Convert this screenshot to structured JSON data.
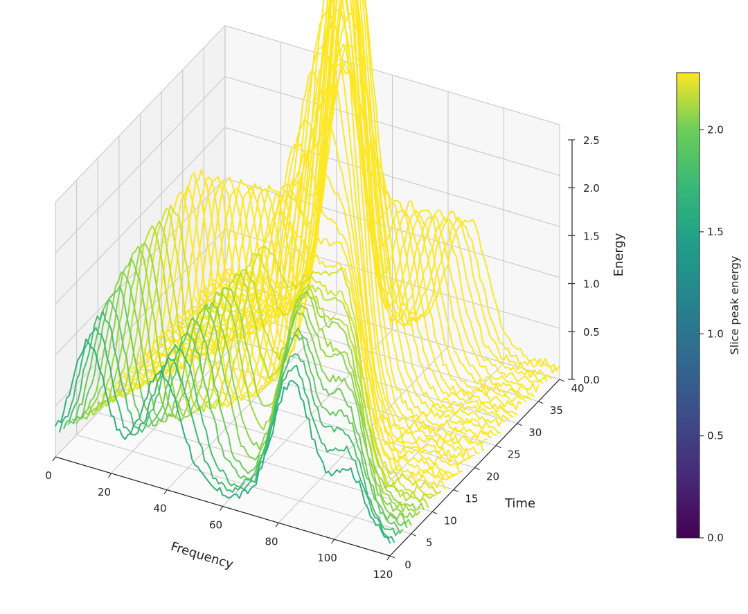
{
  "chart_data": {
    "type": "line3d",
    "title": "",
    "xlabel": "Frequency",
    "ylabel": "Time",
    "zlabel": "Energy",
    "xlim": [
      0,
      120
    ],
    "ylim": [
      0,
      40
    ],
    "zlim": [
      0,
      2.5
    ],
    "xticks": [
      "0",
      "20",
      "40",
      "60",
      "80",
      "100",
      "120"
    ],
    "yticks": [
      "0",
      "5",
      "10",
      "15",
      "20",
      "25",
      "30",
      "35",
      "40"
    ],
    "zticks": [
      "0.0",
      "0.5",
      "1.0",
      "1.5",
      "2.0",
      "2.5"
    ],
    "grid": true,
    "colormap": "viridis",
    "colorbar": {
      "label": "Slice peak energy",
      "range": [
        0,
        2.28
      ],
      "ticks": [
        "0.0",
        "0.5",
        "1.0",
        "1.5",
        "2.0"
      ]
    },
    "frequency": {
      "start": 0,
      "stop": 120,
      "step": 1
    },
    "series": [
      {
        "time": 0,
        "peak": 1.55,
        "peaks": [
          [
            12,
            1.1,
            6
          ],
          [
            38,
            1.0,
            7
          ],
          [
            85,
            1.3,
            7
          ],
          [
            105,
            0.6,
            6
          ]
        ]
      },
      {
        "time": 1,
        "peaks": [
          [
            13,
            1.2,
            6
          ],
          [
            40,
            1.1,
            7
          ],
          [
            84,
            1.4,
            7
          ],
          [
            103,
            0.7,
            6
          ]
        ]
      },
      {
        "time": 2,
        "peaks": [
          [
            14,
            1.3,
            6
          ],
          [
            41,
            1.2,
            7
          ],
          [
            83,
            1.5,
            7
          ],
          [
            101,
            0.8,
            6
          ]
        ]
      },
      {
        "time": 3,
        "peaks": [
          [
            15,
            1.4,
            6
          ],
          [
            43,
            1.3,
            7
          ],
          [
            82,
            1.6,
            7
          ],
          [
            100,
            0.9,
            6
          ]
        ]
      },
      {
        "time": 4,
        "peaks": [
          [
            16,
            1.5,
            6
          ],
          [
            44,
            1.4,
            7
          ],
          [
            81,
            1.6,
            7
          ],
          [
            98,
            1.0,
            6
          ]
        ]
      },
      {
        "time": 5,
        "peaks": [
          [
            17,
            1.6,
            6
          ],
          [
            46,
            1.5,
            7
          ],
          [
            80,
            1.7,
            7
          ],
          [
            97,
            1.1,
            6
          ]
        ]
      },
      {
        "time": 6,
        "peaks": [
          [
            18,
            1.7,
            6
          ],
          [
            47,
            1.5,
            7
          ],
          [
            79,
            1.7,
            7
          ],
          [
            95,
            1.2,
            6
          ]
        ]
      },
      {
        "time": 7,
        "peaks": [
          [
            19,
            1.8,
            6
          ],
          [
            49,
            1.6,
            7
          ],
          [
            78,
            1.8,
            7
          ],
          [
            94,
            1.2,
            6
          ]
        ]
      },
      {
        "time": 8,
        "peaks": [
          [
            20,
            1.8,
            6
          ],
          [
            50,
            1.6,
            7
          ],
          [
            77,
            1.7,
            7
          ],
          [
            92,
            1.3,
            6
          ]
        ]
      },
      {
        "time": 9,
        "peaks": [
          [
            21,
            1.9,
            6
          ],
          [
            52,
            1.7,
            7
          ],
          [
            76,
            1.7,
            7
          ],
          [
            91,
            1.3,
            6
          ]
        ]
      },
      {
        "time": 10,
        "peaks": [
          [
            22,
            1.9,
            6
          ],
          [
            53,
            1.7,
            7
          ],
          [
            75,
            1.6,
            7
          ],
          [
            89,
            1.4,
            6
          ]
        ]
      },
      {
        "time": 11,
        "peaks": [
          [
            23,
            2.0,
            6
          ],
          [
            55,
            1.8,
            7
          ],
          [
            74,
            1.6,
            7
          ],
          [
            88,
            1.4,
            6
          ]
        ]
      },
      {
        "time": 12,
        "peaks": [
          [
            24,
            2.0,
            6
          ],
          [
            56,
            1.8,
            7
          ],
          [
            73,
            1.5,
            7
          ],
          [
            86,
            1.5,
            6
          ]
        ]
      },
      {
        "time": 13,
        "peaks": [
          [
            25,
            2.1,
            6
          ],
          [
            58,
            1.9,
            7
          ],
          [
            72,
            1.5,
            7
          ],
          [
            85,
            1.5,
            6
          ]
        ]
      },
      {
        "time": 14,
        "peaks": [
          [
            26,
            2.1,
            6
          ],
          [
            59,
            1.9,
            7
          ],
          [
            71,
            1.4,
            7
          ],
          [
            83,
            1.6,
            6
          ]
        ]
      },
      {
        "time": 15,
        "peaks": [
          [
            27,
            2.2,
            6
          ],
          [
            61,
            2.0,
            7
          ],
          [
            70,
            1.4,
            7
          ],
          [
            82,
            1.6,
            6
          ]
        ]
      },
      {
        "time": 16,
        "peaks": [
          [
            28,
            2.2,
            6
          ],
          [
            62,
            2.0,
            7
          ],
          [
            69,
            1.3,
            7
          ],
          [
            80,
            1.7,
            6
          ]
        ]
      },
      {
        "time": 17,
        "peaks": [
          [
            29,
            2.1,
            6
          ],
          [
            64,
            2.1,
            7
          ],
          [
            68,
            1.3,
            7
          ],
          [
            79,
            1.7,
            6
          ]
        ]
      },
      {
        "time": 18,
        "peaks": [
          [
            30,
            2.1,
            6
          ],
          [
            65,
            2.1,
            7
          ],
          [
            67,
            1.2,
            7
          ],
          [
            77,
            1.8,
            6
          ]
        ]
      },
      {
        "time": 19,
        "peaks": [
          [
            31,
            2.0,
            6
          ],
          [
            66,
            2.2,
            7
          ],
          [
            66,
            1.2,
            7
          ],
          [
            76,
            1.8,
            6
          ]
        ]
      },
      {
        "time": 20,
        "peaks": [
          [
            32,
            2.0,
            6
          ],
          [
            67,
            2.2,
            7
          ],
          [
            65,
            1.1,
            7
          ],
          [
            74,
            1.9,
            6
          ]
        ]
      },
      {
        "time": 21,
        "peaks": [
          [
            33,
            1.9,
            6
          ],
          [
            68,
            2.1,
            7
          ],
          [
            64,
            1.1,
            7
          ],
          [
            73,
            1.9,
            6
          ]
        ]
      },
      {
        "time": 22,
        "peaks": [
          [
            34,
            1.9,
            6
          ],
          [
            69,
            2.1,
            7
          ],
          [
            63,
            1.0,
            7
          ],
          [
            71,
            2.0,
            6
          ]
        ]
      },
      {
        "time": 23,
        "peaks": [
          [
            35,
            1.8,
            6
          ],
          [
            70,
            2.0,
            7
          ],
          [
            62,
            1.0,
            7
          ],
          [
            70,
            2.0,
            6
          ]
        ]
      },
      {
        "time": 24,
        "peaks": [
          [
            36,
            1.8,
            6
          ],
          [
            71,
            2.0,
            7
          ],
          [
            61,
            1.1,
            7
          ],
          [
            68,
            1.9,
            6
          ]
        ]
      },
      {
        "time": 25,
        "peaks": [
          [
            37,
            1.7,
            6
          ],
          [
            72,
            1.9,
            7
          ],
          [
            60,
            1.1,
            7
          ],
          [
            67,
            1.9,
            6
          ]
        ]
      },
      {
        "time": 26,
        "peaks": [
          [
            38,
            1.7,
            6
          ],
          [
            73,
            1.9,
            7
          ],
          [
            59,
            1.2,
            7
          ],
          [
            65,
            1.8,
            6
          ]
        ]
      },
      {
        "time": 27,
        "peaks": [
          [
            39,
            1.6,
            6
          ],
          [
            74,
            1.8,
            7
          ],
          [
            58,
            1.2,
            7
          ],
          [
            64,
            1.8,
            6
          ]
        ]
      },
      {
        "time": 28,
        "peaks": [
          [
            40,
            1.6,
            6
          ],
          [
            75,
            1.8,
            7
          ],
          [
            57,
            1.3,
            7
          ],
          [
            62,
            1.7,
            6
          ]
        ]
      },
      {
        "time": 29,
        "peaks": [
          [
            41,
            1.5,
            6
          ],
          [
            76,
            1.7,
            7
          ],
          [
            56,
            1.3,
            7
          ],
          [
            61,
            1.7,
            6
          ]
        ]
      },
      {
        "time": 30,
        "peaks": [
          [
            42,
            1.5,
            6
          ],
          [
            77,
            1.7,
            7
          ],
          [
            55,
            1.4,
            7
          ],
          [
            59,
            1.6,
            6
          ]
        ]
      },
      {
        "time": 31,
        "peaks": [
          [
            43,
            1.4,
            6
          ],
          [
            78,
            1.6,
            7
          ],
          [
            54,
            1.4,
            7
          ],
          [
            58,
            1.6,
            6
          ]
        ]
      },
      {
        "time": 32,
        "peaks": [
          [
            44,
            1.4,
            6
          ],
          [
            79,
            1.6,
            7
          ],
          [
            53,
            1.5,
            7
          ],
          [
            56,
            1.5,
            6
          ]
        ]
      },
      {
        "time": 33,
        "peaks": [
          [
            45,
            1.3,
            6
          ],
          [
            80,
            1.5,
            7
          ],
          [
            52,
            1.5,
            7
          ],
          [
            55,
            1.5,
            6
          ]
        ]
      },
      {
        "time": 34,
        "peaks": [
          [
            46,
            1.3,
            6
          ],
          [
            81,
            1.5,
            7
          ],
          [
            51,
            1.6,
            7
          ],
          [
            53,
            1.4,
            6
          ]
        ]
      },
      {
        "time": 35,
        "peaks": [
          [
            47,
            1.2,
            6
          ],
          [
            82,
            1.4,
            7
          ],
          [
            50,
            1.6,
            7
          ],
          [
            52,
            1.4,
            6
          ]
        ]
      },
      {
        "time": 36,
        "peaks": [
          [
            48,
            1.2,
            6
          ],
          [
            83,
            1.4,
            7
          ],
          [
            49,
            1.7,
            7
          ],
          [
            50,
            1.3,
            6
          ]
        ]
      },
      {
        "time": 37,
        "peaks": [
          [
            49,
            1.1,
            6
          ],
          [
            84,
            1.3,
            7
          ],
          [
            48,
            1.7,
            7
          ],
          [
            49,
            1.3,
            6
          ]
        ]
      },
      {
        "time": 38,
        "peaks": [
          [
            50,
            1.1,
            6
          ],
          [
            85,
            1.3,
            7
          ],
          [
            47,
            1.8,
            7
          ],
          [
            47,
            1.2,
            6
          ]
        ]
      },
      {
        "time": 39,
        "peaks": [
          [
            51,
            1.0,
            6
          ],
          [
            86,
            1.2,
            7
          ],
          [
            46,
            1.8,
            7
          ],
          [
            46,
            1.2,
            6
          ]
        ]
      },
      {
        "time": 40,
        "peaks": [
          [
            52,
            1.0,
            6
          ],
          [
            87,
            1.2,
            7
          ],
          [
            45,
            1.9,
            7
          ],
          [
            44,
            1.1,
            6
          ]
        ]
      }
    ]
  }
}
